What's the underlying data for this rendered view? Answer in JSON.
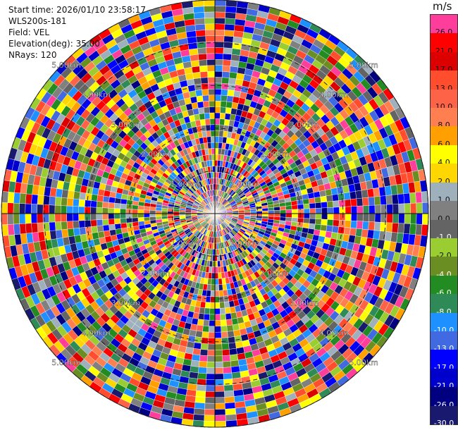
{
  "header": {
    "start_time": "Start time: 2026/01/10 23:58:17",
    "instrument": "WLS200s-181",
    "field": "Field: VEL",
    "elevation": "Elevation(deg): 35.00",
    "nrays": "NRays: 120"
  },
  "colorbar": {
    "unit": "m/s",
    "levels": [
      {
        "label": "26.0",
        "color": "#ff3d9a",
        "text": "#111111"
      },
      {
        "label": "21.0",
        "color": "#ff0000",
        "text": "#111111"
      },
      {
        "label": "17.0",
        "color": "#dd0000",
        "text": "#111111"
      },
      {
        "label": "13.0",
        "color": "#ff4d2e",
        "text": "#111111"
      },
      {
        "label": "10.0",
        "color": "#ff6347",
        "text": "#111111"
      },
      {
        "label": "8.0",
        "color": "#ff7f50",
        "text": "#111111"
      },
      {
        "label": "6.0",
        "color": "#ffa000",
        "text": "#111111"
      },
      {
        "label": "4.0",
        "color": "#ffff00",
        "text": "#111111"
      },
      {
        "label": "2.0",
        "color": "#ffd700",
        "text": "#111111"
      },
      {
        "label": "1.0",
        "color": "#9fb0bd",
        "text": "#111111"
      },
      {
        "label": "0.0",
        "color": "#808080",
        "text": "#111111"
      },
      {
        "label": "-1.0",
        "color": "#646464",
        "text": "#ffffff"
      },
      {
        "label": "-2.0",
        "color": "#9acd32",
        "text": "#111111"
      },
      {
        "label": "-4.0",
        "color": "#6b8e23",
        "text": "#ffffff"
      },
      {
        "label": "-6.0",
        "color": "#228b22",
        "text": "#ffffff"
      },
      {
        "label": "-8.0",
        "color": "#2e8b57",
        "text": "#ffffff"
      },
      {
        "label": "-10.0",
        "color": "#1e90ff",
        "text": "#ffffff"
      },
      {
        "label": "-13.0",
        "color": "#4169e1",
        "text": "#ffffff"
      },
      {
        "label": "-17.0",
        "color": "#0000ff",
        "text": "#ffffff"
      },
      {
        "label": "-21.0",
        "color": "#0000cd",
        "text": "#ffffff"
      },
      {
        "label": "-26.0",
        "color": "#000080",
        "text": "#ffffff"
      },
      {
        "label": "-30.0",
        "color": "#191970",
        "text": "#ffffff"
      }
    ]
  },
  "chart_data": {
    "type": "heatmap",
    "projection": "polar (PPI)",
    "field": "VEL",
    "units": "m/s",
    "nrays": 120,
    "elevation_deg": 35.0,
    "range_rings_km": [
      1.0,
      2.0,
      3.0,
      4.0,
      5.0
    ],
    "ring_labels": [
      "1.00km",
      "2.00km",
      "3.00km",
      "4.00km",
      "5.00km"
    ],
    "max_range_km": 5.0,
    "values": "noisy velocity field with no coherent structure spanning roughly -30 to 26 m/s across all rays and range gates"
  }
}
